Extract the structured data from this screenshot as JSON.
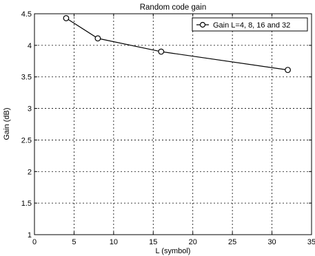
{
  "chart_data": {
    "type": "line",
    "title": "Random code gain",
    "xlabel": "L (symbol)",
    "ylabel": "Gain (dB)",
    "xlim": [
      0,
      35
    ],
    "ylim": [
      1,
      4.5
    ],
    "xticks": [
      "0",
      "5",
      "10",
      "15",
      "20",
      "25",
      "30",
      "35"
    ],
    "yticks": [
      "1",
      "1.5",
      "2",
      "2.5",
      "3",
      "3.5",
      "4",
      "4.5"
    ],
    "grid": true,
    "legend_position": "top-right",
    "series": [
      {
        "name": "Gain L=4, 8, 16 and 32",
        "marker": "circle",
        "color": "#000000",
        "x": [
          4,
          8,
          16,
          32
        ],
        "y": [
          4.43,
          4.11,
          3.9,
          3.61
        ]
      }
    ]
  }
}
